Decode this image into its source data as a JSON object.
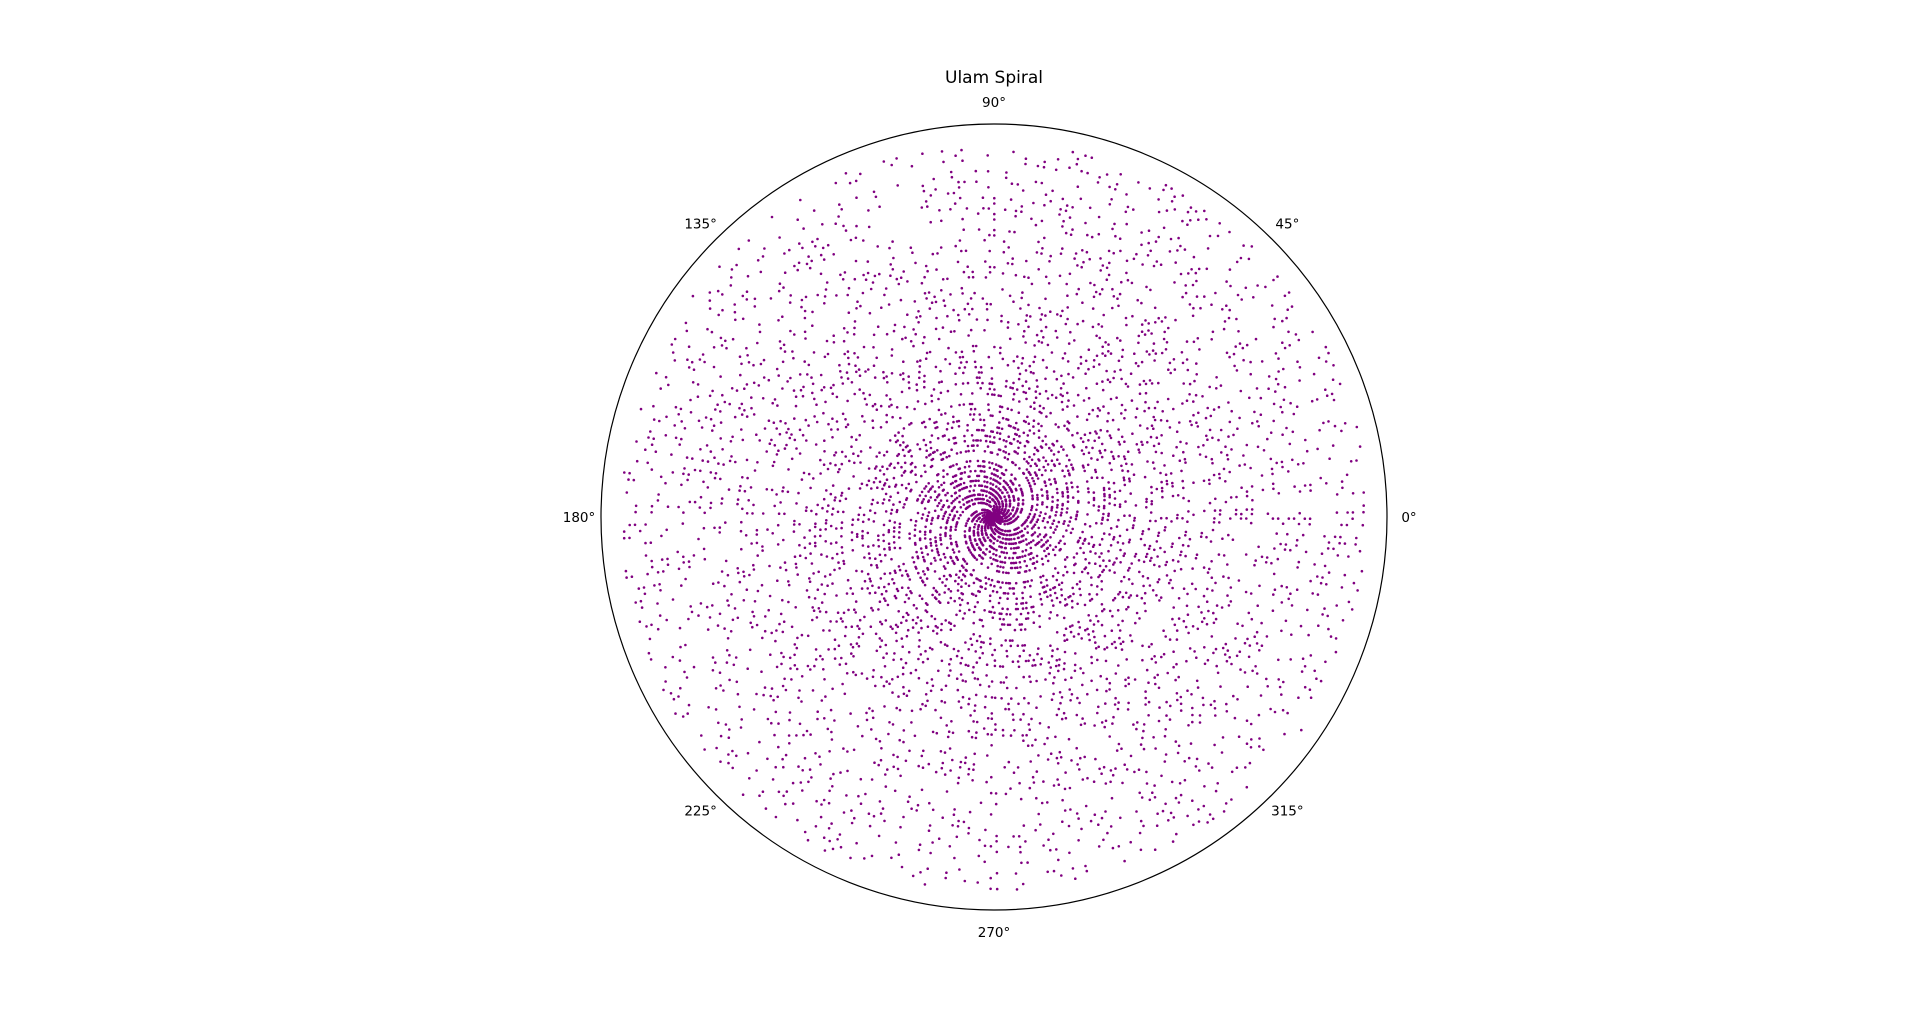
{
  "chart_data": {
    "type": "scatter",
    "projection": "polar",
    "title": "Ulam Spiral",
    "theta_tick_labels": [
      "0°",
      "45°",
      "90°",
      "135°",
      "180°",
      "225°",
      "270°",
      "315°"
    ],
    "theta_ticks_deg": [
      0,
      45,
      90,
      135,
      180,
      225,
      270,
      315
    ],
    "radial_tick_labels": false,
    "grid": false,
    "legend": "none",
    "marker_color": "#800080",
    "series": [
      {
        "rule": "prime numbers n up to N plotted at angle theta = n radians, radius r = n",
        "n_max": 50000
      }
    ],
    "rlim": [
      0,
      52500
    ]
  }
}
